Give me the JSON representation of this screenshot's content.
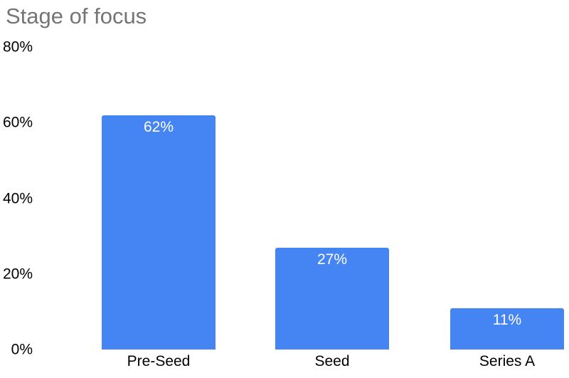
{
  "chart_data": {
    "type": "bar",
    "title": "Stage of focus",
    "categories": [
      "Pre-Seed",
      "Seed",
      "Series A"
    ],
    "values": [
      62,
      27,
      11
    ],
    "value_labels": [
      "62%",
      "27%",
      "11%"
    ],
    "xlabel": "",
    "ylabel": "",
    "ylim": [
      0,
      80
    ],
    "y_ticks": [
      0,
      20,
      40,
      60,
      80
    ],
    "y_tick_labels": [
      "0%",
      "20%",
      "40%",
      "60%",
      "80%"
    ],
    "grid": false,
    "legend": "none",
    "colors": {
      "bar": "#4585f3",
      "value_label": "#ffffff",
      "title": "#757575",
      "axis_text": "#000000",
      "background": "#ffffff"
    }
  }
}
